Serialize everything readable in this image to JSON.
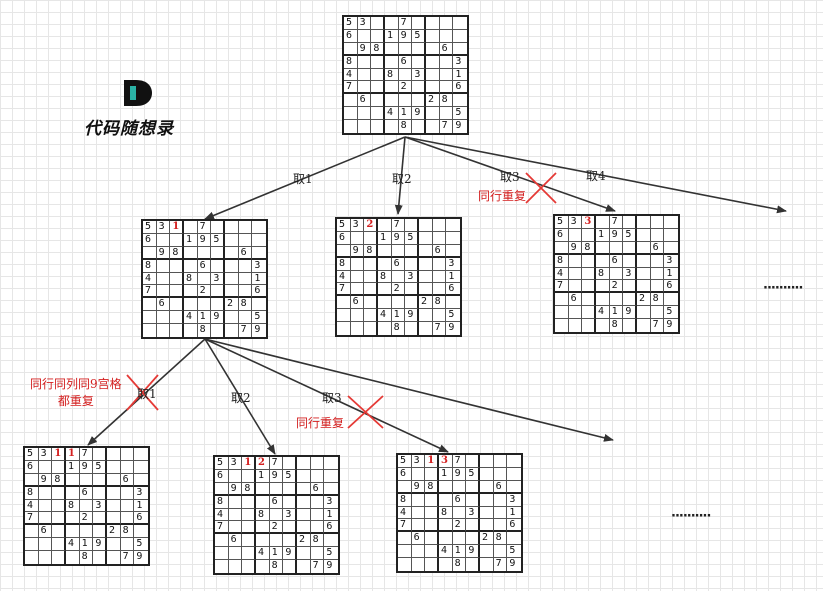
{
  "logo": {
    "text": "代码随想录"
  },
  "base_grid": [
    [
      "5",
      "3",
      "",
      "",
      "7",
      "",
      "",
      "",
      ""
    ],
    [
      "6",
      "",
      "",
      "1",
      "9",
      "5",
      "",
      "",
      ""
    ],
    [
      "",
      "9",
      "8",
      "",
      "",
      "",
      "",
      "6",
      ""
    ],
    [
      "8",
      "",
      "",
      "",
      "6",
      "",
      "",
      "",
      "3"
    ],
    [
      "4",
      "",
      "",
      "8",
      "",
      "3",
      "",
      "",
      "1"
    ],
    [
      "7",
      "",
      "",
      "",
      "2",
      "",
      "",
      "",
      "6"
    ],
    [
      "",
      "6",
      "",
      "",
      "",
      "",
      "2",
      "8",
      ""
    ],
    [
      "",
      "",
      "",
      "4",
      "1",
      "9",
      "",
      "",
      "5"
    ],
    [
      "",
      "",
      "",
      "",
      "8",
      "",
      "",
      "7",
      "9"
    ]
  ],
  "boards": [
    {
      "id": "root",
      "overrides": []
    },
    {
      "id": "l1-take1",
      "overrides": [
        {
          "r": 0,
          "c": 2,
          "v": "1"
        }
      ]
    },
    {
      "id": "l1-take2",
      "overrides": [
        {
          "r": 0,
          "c": 2,
          "v": "2"
        }
      ]
    },
    {
      "id": "l1-take3",
      "overrides": [
        {
          "r": 0,
          "c": 2,
          "v": "3"
        }
      ]
    },
    {
      "id": "l2-take1",
      "overrides": [
        {
          "r": 0,
          "c": 2,
          "v": "1"
        },
        {
          "r": 0,
          "c": 3,
          "v": "1"
        }
      ]
    },
    {
      "id": "l2-take2",
      "overrides": [
        {
          "r": 0,
          "c": 2,
          "v": "1"
        },
        {
          "r": 0,
          "c": 3,
          "v": "2"
        }
      ]
    },
    {
      "id": "l2-take3",
      "overrides": [
        {
          "r": 0,
          "c": 2,
          "v": "1"
        },
        {
          "r": 0,
          "c": 3,
          "v": "3"
        }
      ]
    }
  ],
  "edge_labels": {
    "root_1": "取1",
    "root_2": "取2",
    "root_3": "取3",
    "root_4": "取4",
    "l1_1": "取1",
    "l1_2": "取2",
    "l1_3": "取3"
  },
  "notes": {
    "row_dup_top": "同行重复",
    "row_col_box_dup_line1": "同行同列同9宫格",
    "row_col_box_dup_line2": "都重复",
    "row_dup_bottom": "同行重复"
  },
  "ellipsis": "··········",
  "colors": {
    "highlight": "#d42020",
    "cross": "#e53935",
    "line": "#333333",
    "logo_teal": "#2bb3a6"
  }
}
